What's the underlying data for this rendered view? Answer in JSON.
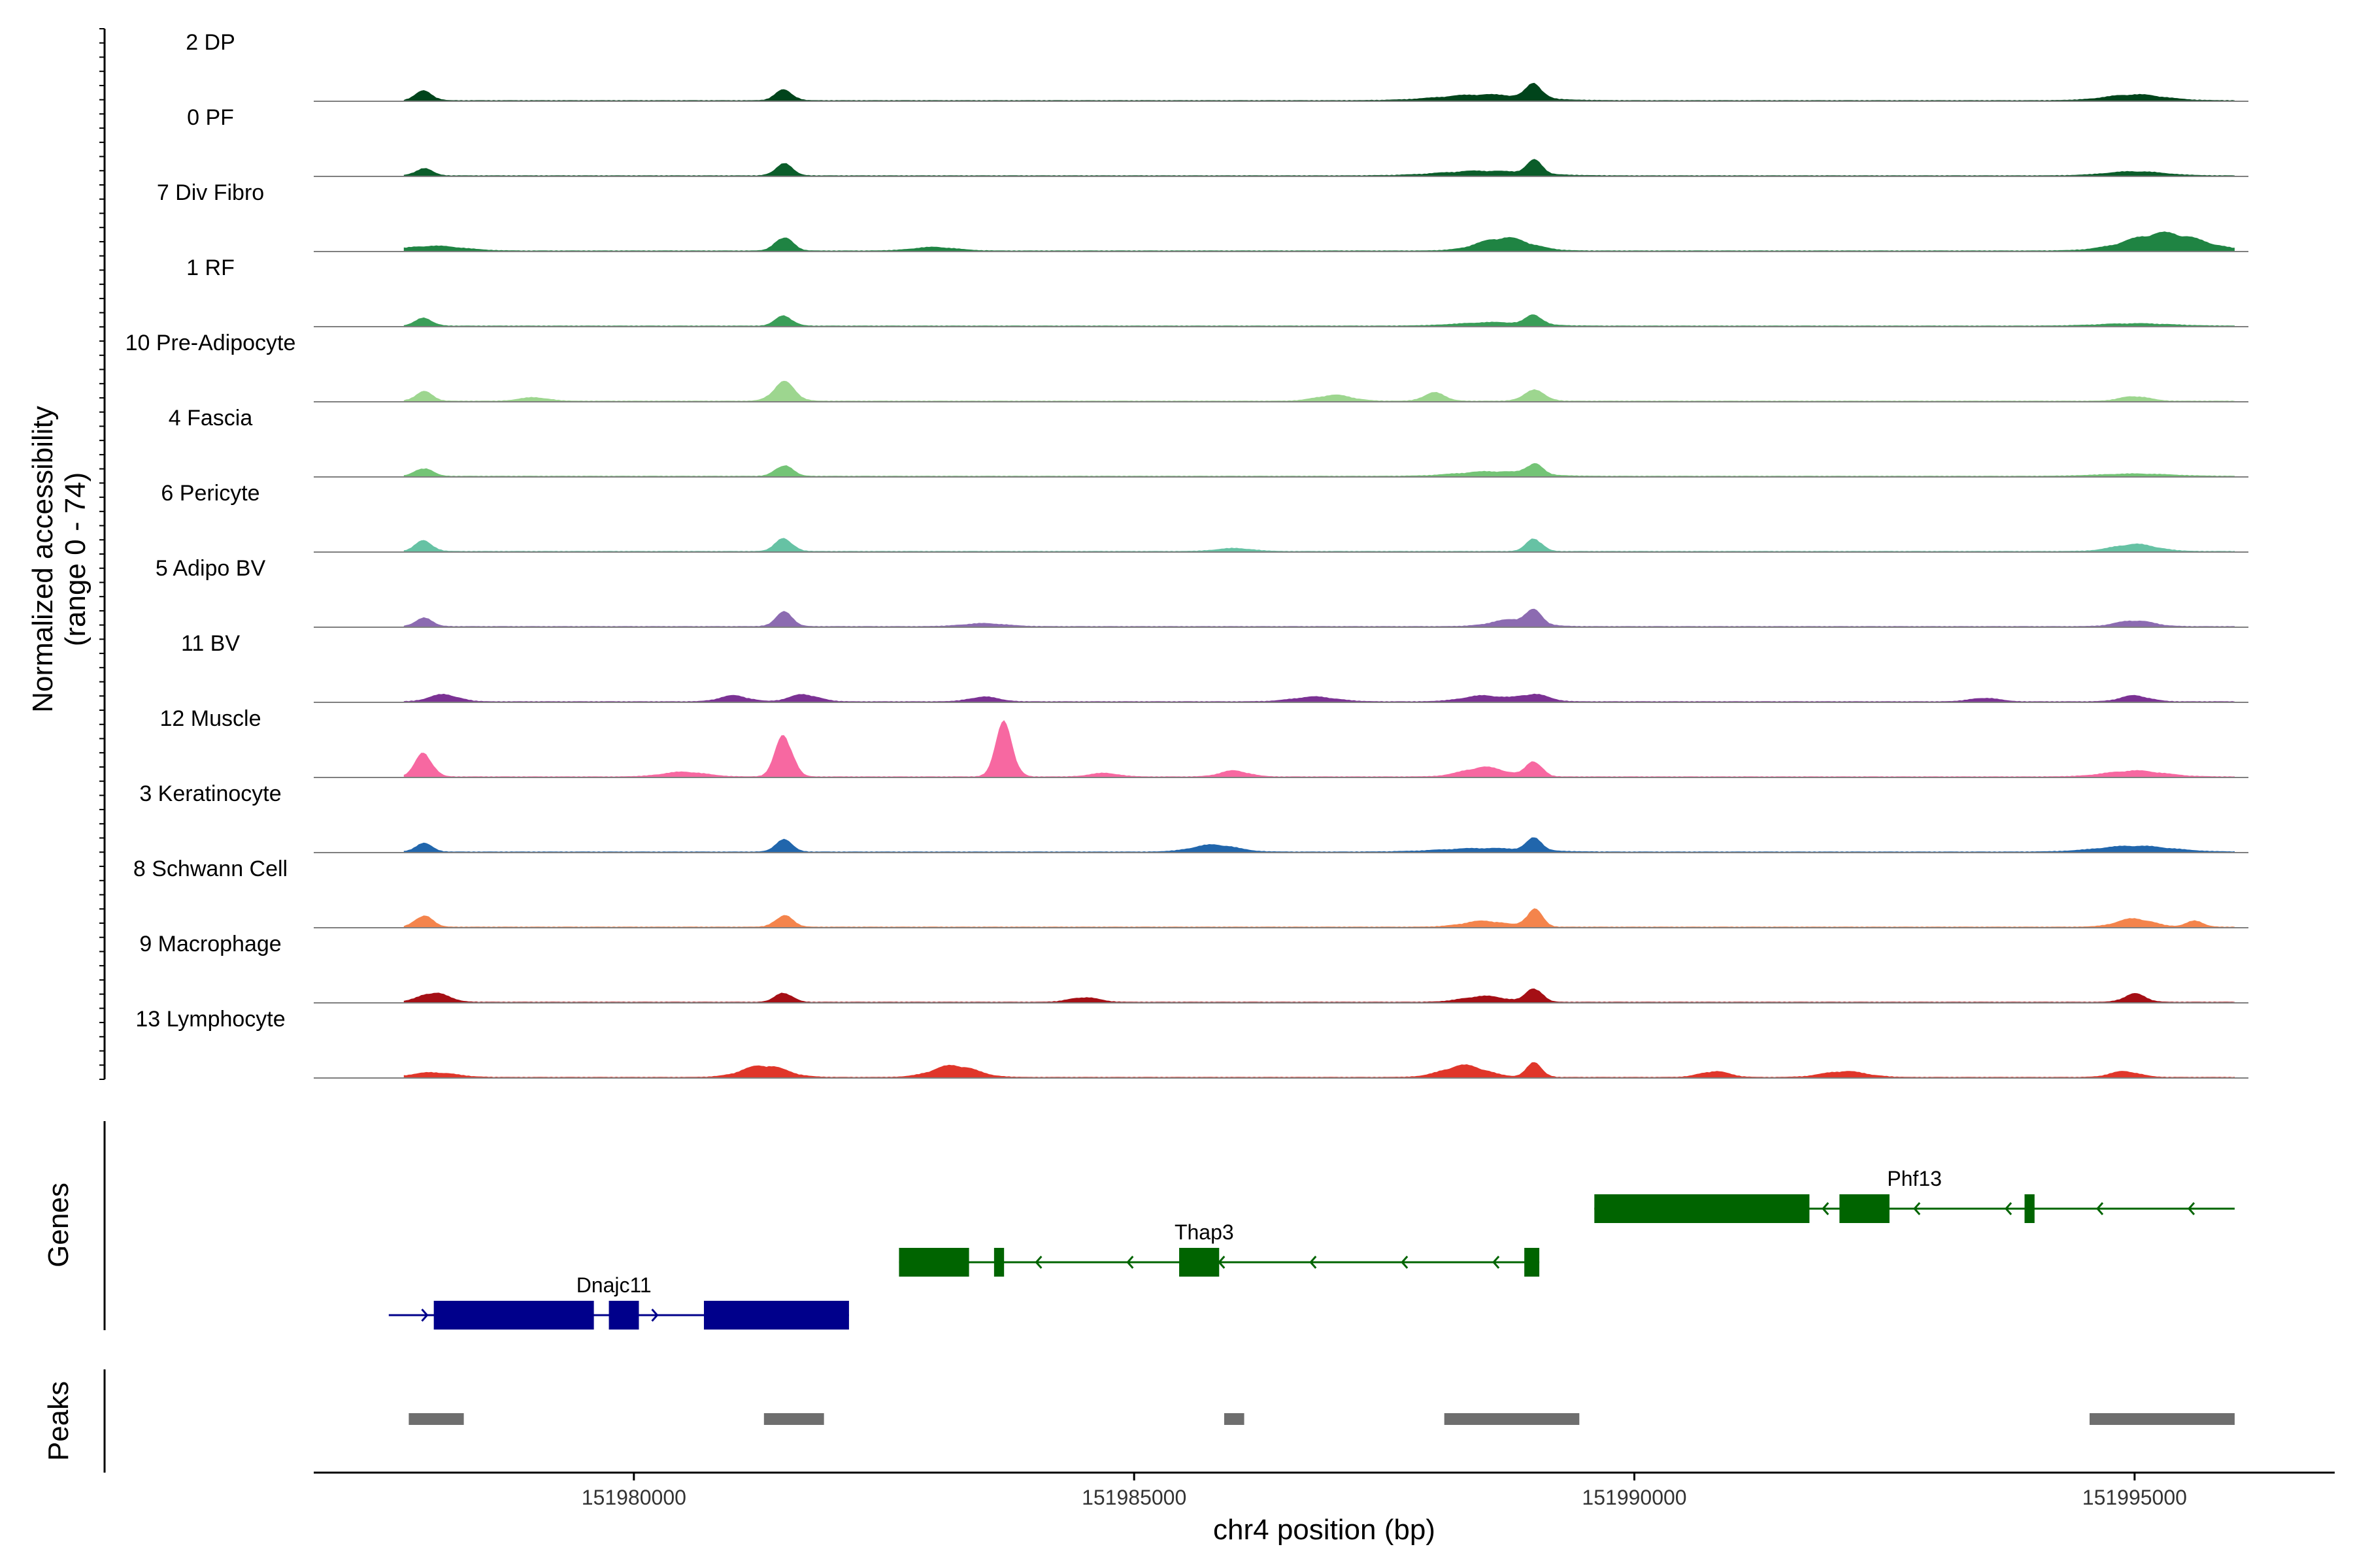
{
  "chart_data": {
    "type": "area",
    "ylabel": [
      "Normalized accessibility",
      "(range 0 - 74)"
    ],
    "xlabel": "chr4 position (bp)",
    "ylim": [
      0,
      74
    ],
    "xlim": [
      151976800,
      151997000
    ],
    "x_ticks": [
      151980000,
      151985000,
      151990000,
      151995000
    ],
    "tick_labels": [
      "151980000",
      "151985000",
      "151990000",
      "151995000"
    ],
    "section_labels": {
      "genes": "Genes",
      "peaks": "Peaks"
    },
    "region": [
      151977700,
      151996000
    ],
    "tracks": [
      {
        "name": "2 DP",
        "color": "#00441B",
        "peaks": [
          [
            151977900,
            0.16,
            120
          ],
          [
            151981500,
            0.18,
            120
          ],
          [
            151988500,
            0.1,
            600
          ],
          [
            151989000,
            0.24,
            110
          ],
          [
            151995000,
            0.1,
            400
          ]
        ]
      },
      {
        "name": "0 PF",
        "color": "#0B5D2A",
        "peaks": [
          [
            151977900,
            0.12,
            120
          ],
          [
            151981500,
            0.2,
            120
          ],
          [
            151988500,
            0.08,
            600
          ],
          [
            151989000,
            0.22,
            110
          ],
          [
            151995000,
            0.07,
            400
          ]
        ]
      },
      {
        "name": "7 Div Fibro",
        "color": "#1F8443",
        "peaks": [
          [
            151978000,
            0.08,
            400
          ],
          [
            151981500,
            0.24,
            120
          ],
          [
            151983000,
            0.06,
            300
          ],
          [
            151988700,
            0.22,
            350
          ],
          [
            151995300,
            0.3,
            500
          ]
        ]
      },
      {
        "name": "1 RF",
        "color": "#3A9E58",
        "peaks": [
          [
            151977900,
            0.13,
            120
          ],
          [
            151981500,
            0.17,
            120
          ],
          [
            151988600,
            0.06,
            500
          ],
          [
            151989000,
            0.16,
            110
          ],
          [
            151995000,
            0.04,
            500
          ]
        ]
      },
      {
        "name": "10 Pre-Adipocyte",
        "color": "#9DD68F",
        "peaks": [
          [
            151977900,
            0.16,
            120
          ],
          [
            151981500,
            0.32,
            150
          ],
          [
            151979000,
            0.06,
            200
          ],
          [
            151987000,
            0.1,
            250
          ],
          [
            151988000,
            0.14,
            150
          ],
          [
            151989000,
            0.18,
            150
          ],
          [
            151995000,
            0.08,
            200
          ]
        ]
      },
      {
        "name": "4 Fascia",
        "color": "#74C476",
        "peaks": [
          [
            151977900,
            0.14,
            120
          ],
          [
            151981500,
            0.19,
            120
          ],
          [
            151988600,
            0.08,
            500
          ],
          [
            151989000,
            0.18,
            110
          ],
          [
            151995000,
            0.04,
            500
          ]
        ]
      },
      {
        "name": "6 Pericyte",
        "color": "#66C2A4",
        "peaks": [
          [
            151977900,
            0.18,
            120
          ],
          [
            151981500,
            0.22,
            120
          ],
          [
            151986000,
            0.05,
            250
          ],
          [
            151989000,
            0.22,
            110
          ],
          [
            151995000,
            0.12,
            300
          ]
        ]
      },
      {
        "name": "5 Adipo BV",
        "color": "#8C6BB1",
        "peaks": [
          [
            151977900,
            0.14,
            120
          ],
          [
            151981500,
            0.24,
            120
          ],
          [
            151983500,
            0.05,
            300
          ],
          [
            151988800,
            0.12,
            300
          ],
          [
            151989000,
            0.2,
            110
          ],
          [
            151995000,
            0.1,
            250
          ]
        ]
      },
      {
        "name": "11 BV",
        "color": "#7B3294",
        "peaks": [
          [
            151978100,
            0.12,
            200
          ],
          [
            151981000,
            0.1,
            200
          ],
          [
            151981700,
            0.12,
            200
          ],
          [
            151983500,
            0.08,
            200
          ],
          [
            151986800,
            0.08,
            300
          ],
          [
            151988500,
            0.1,
            300
          ],
          [
            151989000,
            0.12,
            200
          ],
          [
            151993500,
            0.06,
            200
          ],
          [
            151995000,
            0.1,
            200
          ]
        ]
      },
      {
        "name": "12 Muscle",
        "color": "#F768A1",
        "peaks": [
          [
            151977900,
            0.4,
            120
          ],
          [
            151980500,
            0.08,
            300
          ],
          [
            151981500,
            0.72,
            120
          ],
          [
            151983700,
            0.9,
            120
          ],
          [
            151984700,
            0.06,
            200
          ],
          [
            151986000,
            0.1,
            200
          ],
          [
            151988500,
            0.16,
            300
          ],
          [
            151989000,
            0.26,
            110
          ],
          [
            151995000,
            0.1,
            400
          ]
        ]
      },
      {
        "name": "3 Keratinocyte",
        "color": "#2166AC",
        "peaks": [
          [
            151977900,
            0.14,
            120
          ],
          [
            151981500,
            0.2,
            120
          ],
          [
            151985800,
            0.12,
            300
          ],
          [
            151988500,
            0.06,
            600
          ],
          [
            151989000,
            0.2,
            110
          ],
          [
            151995000,
            0.1,
            500
          ]
        ]
      },
      {
        "name": "8 Schwann Cell",
        "color": "#F4844C",
        "peaks": [
          [
            151977900,
            0.2,
            120
          ],
          [
            151981500,
            0.2,
            120
          ],
          [
            151988500,
            0.1,
            300
          ],
          [
            151989000,
            0.3,
            110
          ],
          [
            151995000,
            0.14,
            250
          ],
          [
            151995600,
            0.1,
            120
          ]
        ]
      },
      {
        "name": "9 Macrophage",
        "color": "#A50F15",
        "peaks": [
          [
            151978000,
            0.16,
            200
          ],
          [
            151981500,
            0.16,
            120
          ],
          [
            151984500,
            0.08,
            200
          ],
          [
            151988500,
            0.1,
            300
          ],
          [
            151989000,
            0.24,
            110
          ],
          [
            151995000,
            0.14,
            150
          ]
        ]
      },
      {
        "name": "13 Lymphocyte",
        "color": "#E0362A",
        "peaks": [
          [
            151978000,
            0.08,
            300
          ],
          [
            151981300,
            0.2,
            300
          ],
          [
            151983200,
            0.2,
            300
          ],
          [
            151988300,
            0.2,
            300
          ],
          [
            151989000,
            0.24,
            110
          ],
          [
            151990800,
            0.1,
            200
          ],
          [
            151992100,
            0.1,
            300
          ],
          [
            151994900,
            0.1,
            200
          ]
        ]
      }
    ],
    "genes": [
      {
        "name": "Dnajc11",
        "strand": "+",
        "color": "#00008B",
        "start": 151977550,
        "end": 151982150,
        "row": 2,
        "exons": [
          [
            151978000,
            151979600
          ],
          [
            151979750,
            151980050
          ],
          [
            151980700,
            151982150
          ]
        ]
      },
      {
        "name": "Thap3",
        "strand": "-",
        "color": "#006400",
        "start": 151982650,
        "end": 151989050,
        "row": 1,
        "exons": [
          [
            151982650,
            151983350
          ],
          [
            151983600,
            151983700
          ],
          [
            151985450,
            151985850
          ],
          [
            151988900,
            151989050
          ]
        ]
      },
      {
        "name": "Phf13",
        "strand": "-",
        "color": "#006400",
        "start": 151989600,
        "end": 151996000,
        "row": 0,
        "exons": [
          [
            151989600,
            151991750
          ],
          [
            151992050,
            151992550
          ],
          [
            151993900,
            151994000
          ]
        ]
      }
    ],
    "peaks_track": [
      [
        151977750,
        151978300
      ],
      [
        151981300,
        151981900
      ],
      [
        151985900,
        151986100
      ],
      [
        151988100,
        151989450
      ],
      [
        151994550,
        151996000
      ]
    ]
  }
}
